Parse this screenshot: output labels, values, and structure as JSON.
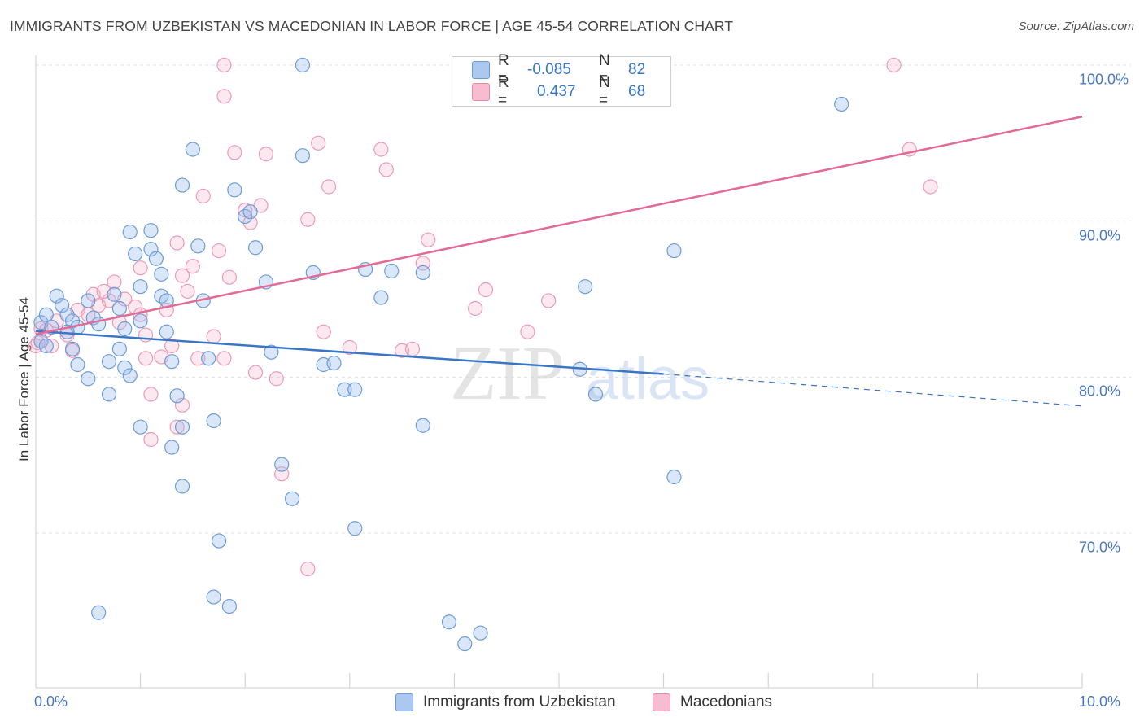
{
  "title": "IMMIGRANTS FROM UZBEKISTAN VS MACEDONIAN IN LABOR FORCE | AGE 45-54 CORRELATION CHART",
  "source": "Source: ZipAtlas.com",
  "watermark": {
    "zip": "ZIP",
    "atlas": "atlas"
  },
  "legend": {
    "rows": [
      {
        "r_label": "R =",
        "r_value": "-0.085",
        "n_label": "N =",
        "n_value": "82",
        "color": "#aac8f0",
        "border": "#6d9bd8"
      },
      {
        "r_label": "R =",
        "r_value": "0.437",
        "n_label": "N =",
        "n_value": "68",
        "color": "#f6bcd0",
        "border": "#e88aa8"
      }
    ]
  },
  "bottom_legend": [
    {
      "label": "Immigrants from Uzbekistan",
      "color": "#aac8f0",
      "border": "#6d9bd8"
    },
    {
      "label": "Macedonians",
      "color": "#f6bcd0",
      "border": "#e88aa8"
    }
  ],
  "colors": {
    "blue_line": "#3a76c8",
    "pink_line": "#e36a94",
    "blue_fill": "rgba(150,186,236,0.35)",
    "blue_stroke": "#6d9bd8",
    "pink_fill": "rgba(246,182,204,0.30)",
    "pink_stroke": "#ec9ab6",
    "tick_text": "#4a78c2",
    "grid": "#e0e0e0"
  },
  "chart_data": {
    "type": "scatter",
    "title": "IMMIGRANTS FROM UZBEKISTAN VS MACEDONIAN IN LABOR FORCE | AGE 45-54 CORRELATION CHART",
    "xlabel": "",
    "ylabel": "In Labor Force | Age 45-54",
    "xlim": [
      0,
      10
    ],
    "ylim": [
      60,
      100
    ],
    "x_tick_labels": [
      "0.0%",
      "10.0%"
    ],
    "y_ticks": [
      {
        "value": 70,
        "label": "70.0%"
      },
      {
        "value": 80,
        "label": "80.0%"
      },
      {
        "value": 90,
        "label": "90.0%"
      },
      {
        "value": 100,
        "label": "100.0%"
      }
    ],
    "grid": true,
    "legend_position": "top-center",
    "series": [
      {
        "name": "Immigrants from Uzbekistan",
        "trend": {
          "x0": 0.0,
          "y0": 82.95,
          "x1": 6.0,
          "y1": 80.2,
          "dashed_x1": 10.0,
          "dashed_y1": 78.15
        },
        "points": [
          [
            0.05,
            83.5
          ],
          [
            0.1,
            84.0
          ],
          [
            0.15,
            83.2
          ],
          [
            0.05,
            82.3
          ],
          [
            0.1,
            82.0
          ],
          [
            0.2,
            85.2
          ],
          [
            0.25,
            84.6
          ],
          [
            0.3,
            84.0
          ],
          [
            0.35,
            83.6
          ],
          [
            0.4,
            83.2
          ],
          [
            0.3,
            82.9
          ],
          [
            0.35,
            81.8
          ],
          [
            0.4,
            80.8
          ],
          [
            0.5,
            79.9
          ],
          [
            0.5,
            84.9
          ],
          [
            0.55,
            83.8
          ],
          [
            0.6,
            83.4
          ],
          [
            0.7,
            81.0
          ],
          [
            0.7,
            78.9
          ],
          [
            0.75,
            85.3
          ],
          [
            0.8,
            84.4
          ],
          [
            0.85,
            83.1
          ],
          [
            0.8,
            81.8
          ],
          [
            0.85,
            80.6
          ],
          [
            0.9,
            80.1
          ],
          [
            0.9,
            89.3
          ],
          [
            0.95,
            87.9
          ],
          [
            1.0,
            85.8
          ],
          [
            1.0,
            83.6
          ],
          [
            1.0,
            76.8
          ],
          [
            1.1,
            88.2
          ],
          [
            1.1,
            89.4
          ],
          [
            1.15,
            87.6
          ],
          [
            1.2,
            86.6
          ],
          [
            1.2,
            85.2
          ],
          [
            1.25,
            84.9
          ],
          [
            1.25,
            82.9
          ],
          [
            1.3,
            81.0
          ],
          [
            1.35,
            78.8
          ],
          [
            1.4,
            76.8
          ],
          [
            1.3,
            75.5
          ],
          [
            1.4,
            73.0
          ],
          [
            1.4,
            92.3
          ],
          [
            1.5,
            94.6
          ],
          [
            1.55,
            88.4
          ],
          [
            1.6,
            84.9
          ],
          [
            1.65,
            81.2
          ],
          [
            1.7,
            77.2
          ],
          [
            1.75,
            69.5
          ],
          [
            1.85,
            65.3
          ],
          [
            1.9,
            92.0
          ],
          [
            2.0,
            90.3
          ],
          [
            2.05,
            90.6
          ],
          [
            2.1,
            88.3
          ],
          [
            2.2,
            86.1
          ],
          [
            2.25,
            81.6
          ],
          [
            2.35,
            74.4
          ],
          [
            2.45,
            72.2
          ],
          [
            2.55,
            94.2
          ],
          [
            2.65,
            86.7
          ],
          [
            2.75,
            80.8
          ],
          [
            2.85,
            80.9
          ],
          [
            2.95,
            79.2
          ],
          [
            3.05,
            79.2
          ],
          [
            3.05,
            70.3
          ],
          [
            3.15,
            86.9
          ],
          [
            3.3,
            85.1
          ],
          [
            3.4,
            86.8
          ],
          [
            3.7,
            86.7
          ],
          [
            3.7,
            76.9
          ],
          [
            2.55,
            100.0
          ],
          [
            3.95,
            64.3
          ],
          [
            4.1,
            62.9
          ],
          [
            4.25,
            63.6
          ],
          [
            5.2,
            80.5
          ],
          [
            5.25,
            85.8
          ],
          [
            5.35,
            78.9
          ],
          [
            6.1,
            88.1
          ],
          [
            6.1,
            73.6
          ],
          [
            7.7,
            97.5
          ],
          [
            0.6,
            64.9
          ],
          [
            1.7,
            65.9
          ]
        ]
      },
      {
        "name": "Macedonians",
        "trend": {
          "x0": 0.0,
          "y0": 82.75,
          "x1": 10.0,
          "y1": 96.7
        },
        "points": [
          [
            0.02,
            82.2
          ],
          [
            0.1,
            83.0
          ],
          [
            0.15,
            82.0
          ],
          [
            0.2,
            83.6
          ],
          [
            0.3,
            82.7
          ],
          [
            0.35,
            81.7
          ],
          [
            0.4,
            84.3
          ],
          [
            0.5,
            84.0
          ],
          [
            0.6,
            84.6
          ],
          [
            0.7,
            84.9
          ],
          [
            0.55,
            85.3
          ],
          [
            0.65,
            85.5
          ],
          [
            0.75,
            86.1
          ],
          [
            0.8,
            83.5
          ],
          [
            0.85,
            85.0
          ],
          [
            0.95,
            84.5
          ],
          [
            1.0,
            84.0
          ],
          [
            1.05,
            82.7
          ],
          [
            1.0,
            87.0
          ],
          [
            1.05,
            81.2
          ],
          [
            1.1,
            76.0
          ],
          [
            1.1,
            78.9
          ],
          [
            1.2,
            81.3
          ],
          [
            1.25,
            84.3
          ],
          [
            1.3,
            82.0
          ],
          [
            1.35,
            88.6
          ],
          [
            1.4,
            86.5
          ],
          [
            1.35,
            76.8
          ],
          [
            1.4,
            78.2
          ],
          [
            1.45,
            85.5
          ],
          [
            1.5,
            87.1
          ],
          [
            1.55,
            81.2
          ],
          [
            1.6,
            91.6
          ],
          [
            1.7,
            82.6
          ],
          [
            1.75,
            88.1
          ],
          [
            1.8,
            98.0
          ],
          [
            1.8,
            81.2
          ],
          [
            1.85,
            86.4
          ],
          [
            1.9,
            94.4
          ],
          [
            2.0,
            90.7
          ],
          [
            2.05,
            89.9
          ],
          [
            2.1,
            80.3
          ],
          [
            2.15,
            91.0
          ],
          [
            2.2,
            94.3
          ],
          [
            2.3,
            79.9
          ],
          [
            2.35,
            73.8
          ],
          [
            2.6,
            90.1
          ],
          [
            2.6,
            67.7
          ],
          [
            2.7,
            95.0
          ],
          [
            2.75,
            82.9
          ],
          [
            2.8,
            92.2
          ],
          [
            3.0,
            81.9
          ],
          [
            3.3,
            94.6
          ],
          [
            3.35,
            93.3
          ],
          [
            3.5,
            81.7
          ],
          [
            3.6,
            81.8
          ],
          [
            3.7,
            87.3
          ],
          [
            3.75,
            88.8
          ],
          [
            4.2,
            84.4
          ],
          [
            4.3,
            85.6
          ],
          [
            4.7,
            82.9
          ],
          [
            4.9,
            84.9
          ],
          [
            8.2,
            100.0
          ],
          [
            8.35,
            94.6
          ],
          [
            8.55,
            92.2
          ],
          [
            1.8,
            100.0
          ],
          [
            0.0,
            82.0
          ],
          [
            0.05,
            83.1
          ]
        ]
      }
    ]
  }
}
